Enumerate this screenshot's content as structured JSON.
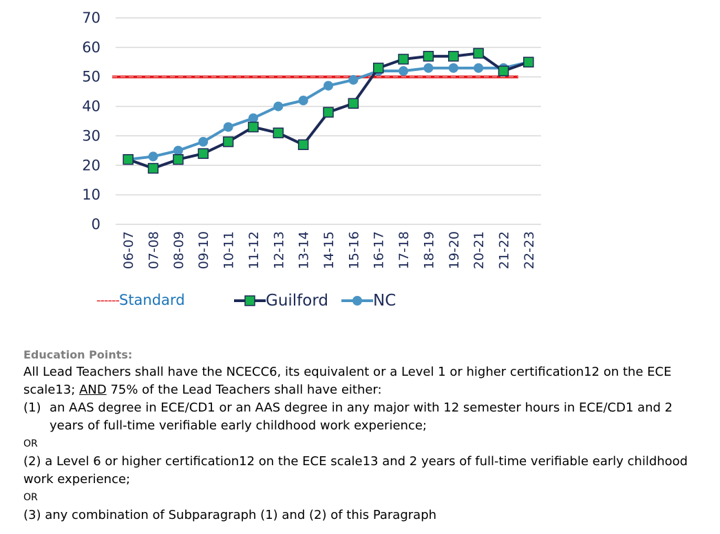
{
  "colors": {
    "standard": "#e3171a",
    "guilford_line": "#1d2a57",
    "guilford_marker": "#17b04f",
    "nc": "#4a94c4",
    "grid": "#d9d9d9",
    "axis_text": "#1d2a57"
  },
  "chart_data": {
    "type": "line",
    "title": "",
    "xlabel": "",
    "ylabel": "",
    "ylim": [
      0,
      70
    ],
    "yticks": [
      0,
      10,
      20,
      30,
      40,
      50,
      60,
      70
    ],
    "grid": true,
    "legend_position": "bottom",
    "categories": [
      "06-07",
      "07-08",
      "08-09",
      "09-10",
      "10-11",
      "11-12",
      "12-13",
      "13-14",
      "14-15",
      "15-16",
      "16-17",
      "17-18",
      "18-19",
      "19-20",
      "20-21",
      "21-22",
      "22-23"
    ],
    "standard": {
      "name": "Standard",
      "value": 50
    },
    "series": [
      {
        "name": "Guilford",
        "values": [
          22,
          19,
          22,
          24,
          28,
          33,
          31,
          27,
          38,
          41,
          53,
          56,
          57,
          57,
          58,
          52,
          55
        ]
      },
      {
        "name": "NC",
        "values": [
          22,
          23,
          25,
          28,
          33,
          36,
          40,
          42,
          47,
          49,
          52,
          52,
          53,
          53,
          53,
          53,
          55
        ]
      }
    ]
  },
  "legend": {
    "standard_dashes": "------",
    "standard_label": "Standard",
    "guilford_label": "Guilford",
    "nc_label": "NC"
  },
  "text": {
    "heading": "Education Points:",
    "p1_part1": "All Lead Teachers shall have the NCECC6, its equivalent or a Level 1 or higher certification12 on the ECE scale13; ",
    "p1_and": "AND",
    "p1_part2": " 75% of the Lead Teachers shall have either:",
    "item1_num": "(1)",
    "item1_text": "an AAS degree in ECE/CD1 or an AAS degree in any major with 12 semester hours in ECE/CD1 and 2 years of full-time verifiable early childhood work experience;",
    "or1": "OR",
    "item2": "(2) a Level 6 or higher certification12 on the ECE scale13 and 2 years of full-time verifiable early childhood work experience;",
    "or2": "OR",
    "item3": "(3) any combination of Subparagraph (1) and (2) of this Paragraph"
  }
}
